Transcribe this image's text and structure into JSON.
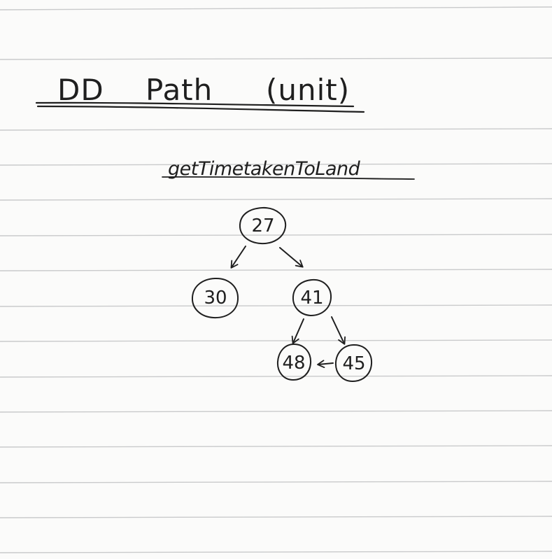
{
  "page": {
    "title_left": "DD",
    "title_mid": "Path",
    "title_right": "(unit)",
    "subtitle": "getTimetakenToLand"
  },
  "nodes": [
    {
      "id": "n27",
      "label": "27"
    },
    {
      "id": "n30",
      "label": "30"
    },
    {
      "id": "n41",
      "label": "41"
    },
    {
      "id": "n48",
      "label": "48"
    },
    {
      "id": "n45",
      "label": "45"
    }
  ],
  "edges": [
    {
      "from": "n27",
      "to": "n30"
    },
    {
      "from": "n27",
      "to": "n41"
    },
    {
      "from": "n41",
      "to": "n48"
    },
    {
      "from": "n41",
      "to": "n45"
    },
    {
      "from": "n45",
      "to": "n48"
    }
  ],
  "colors": {
    "ink": "#1f1f1f",
    "ruled_line": "#c9cacb",
    "paper": "#fbfbfa"
  }
}
